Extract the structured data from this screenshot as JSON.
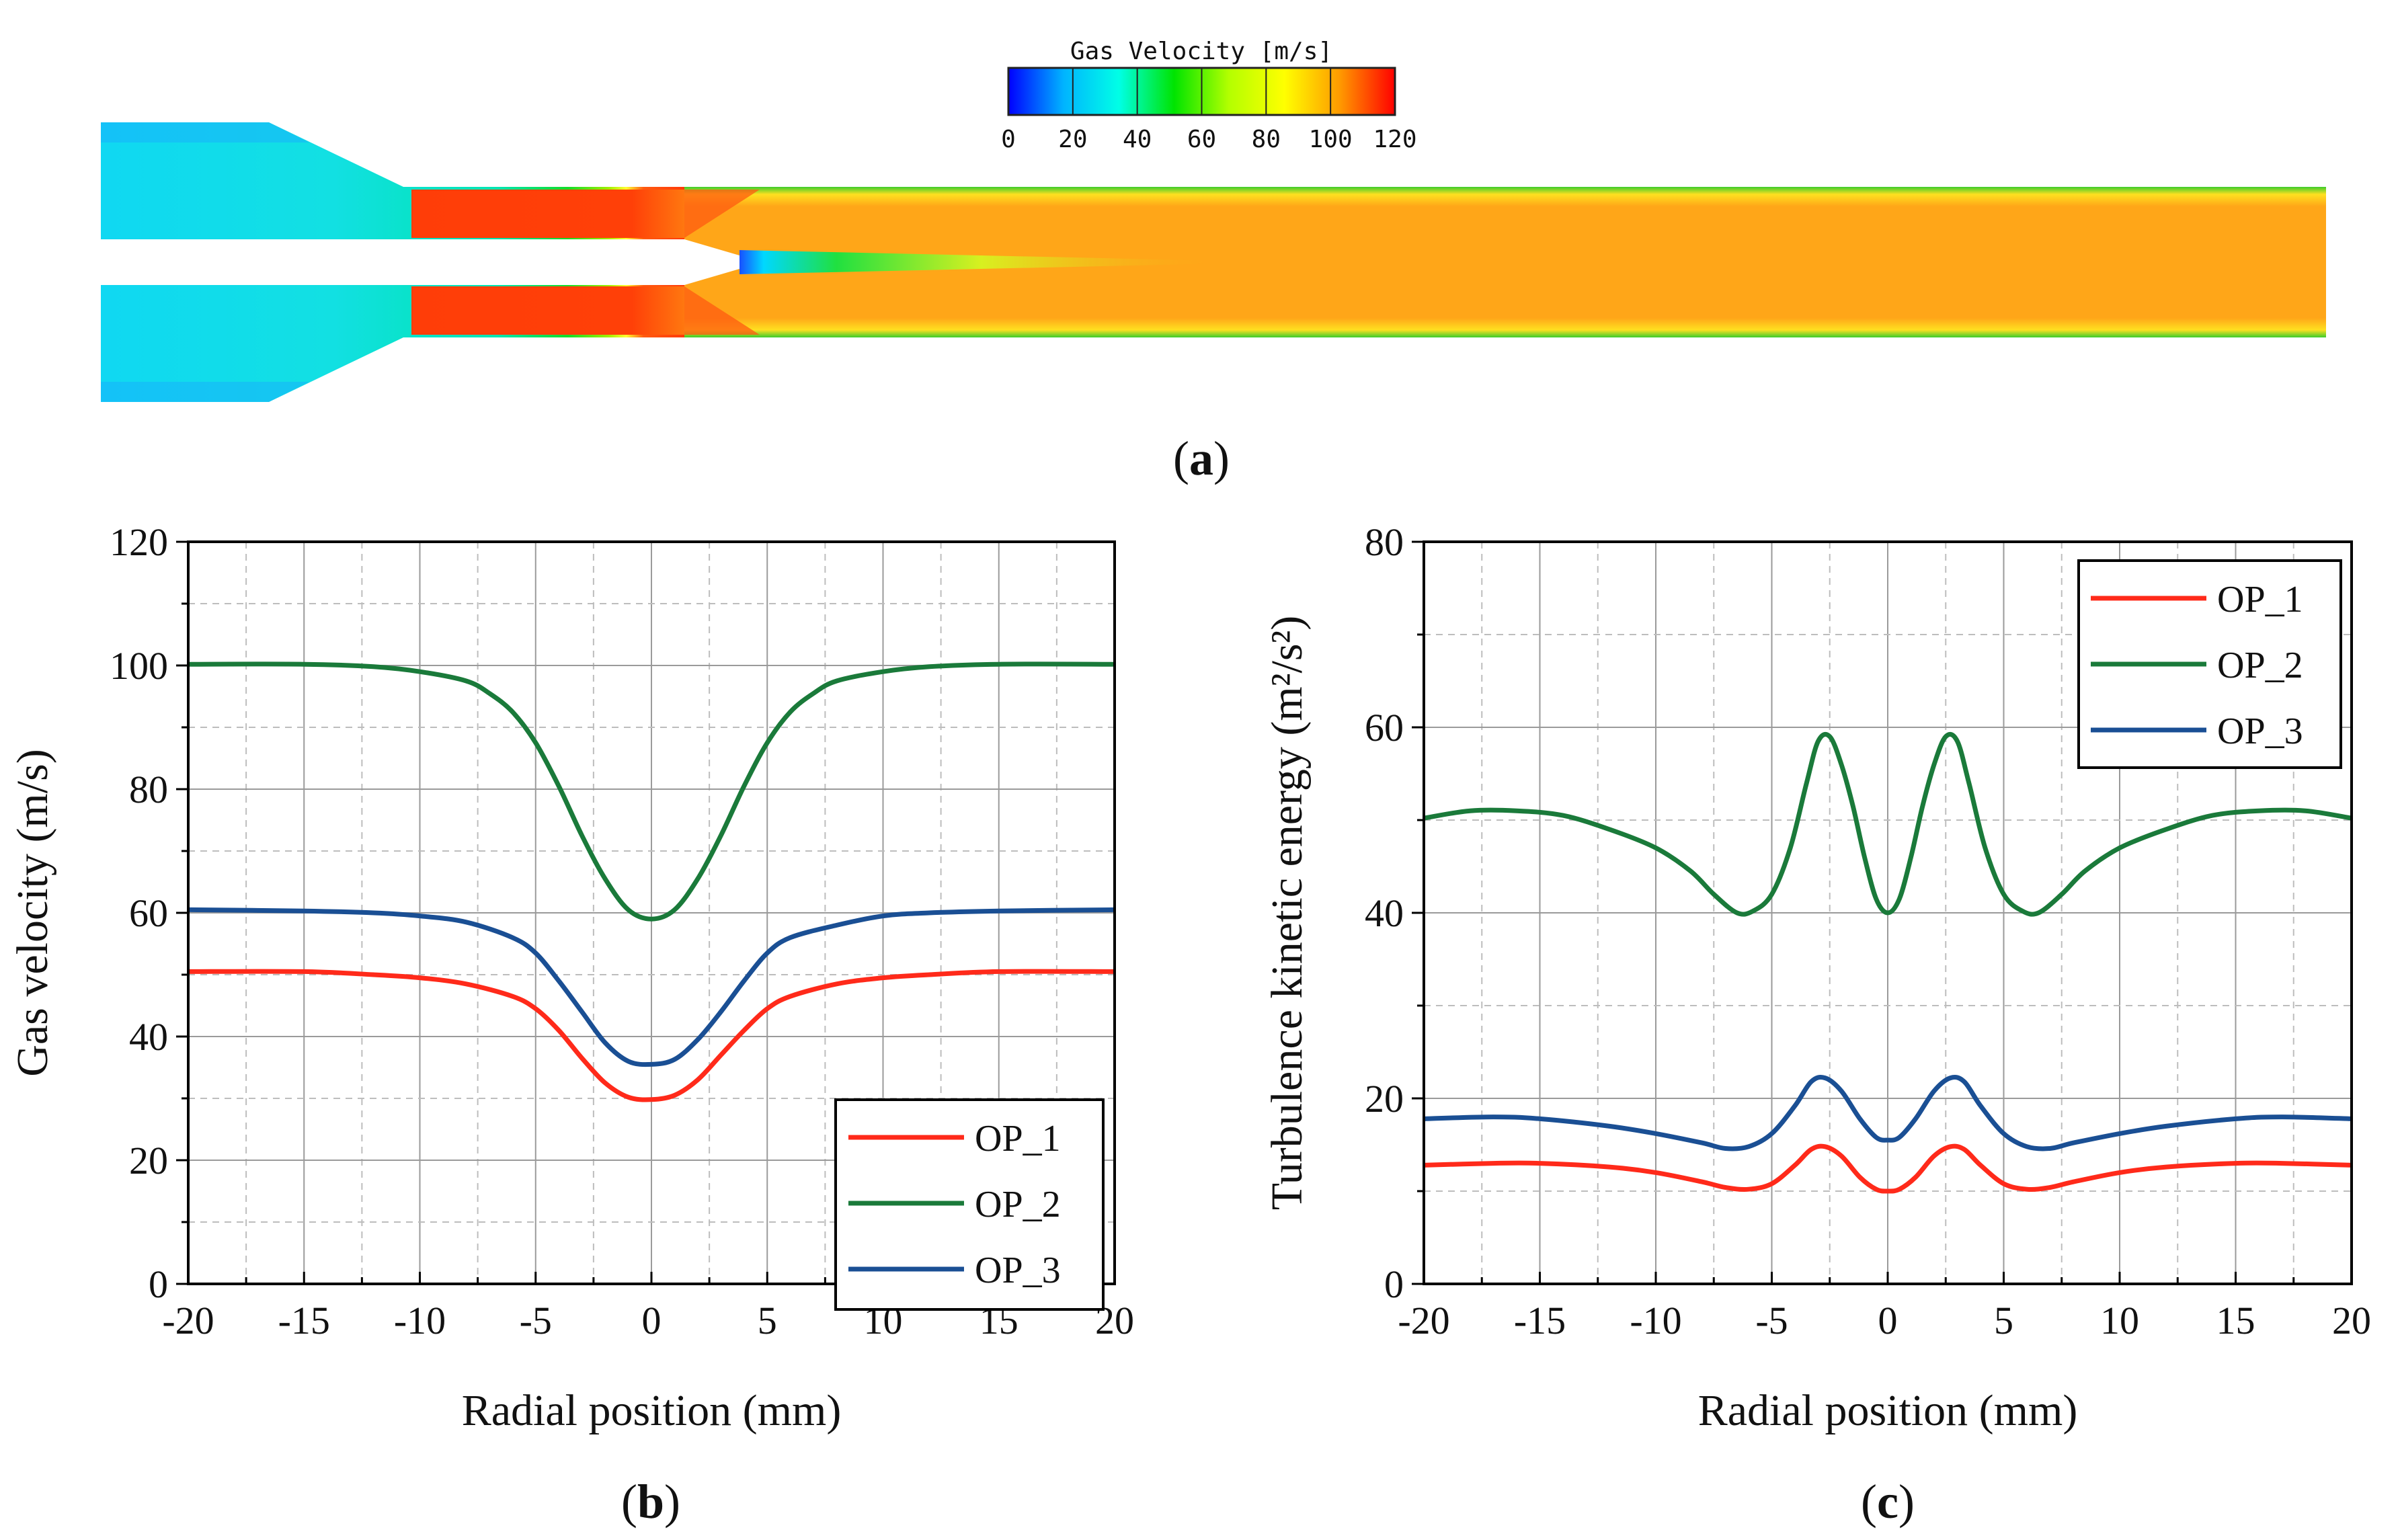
{
  "captions": {
    "a_open": "(",
    "a_letter": "a",
    "a_close": ")",
    "b_open": "(",
    "b_letter": "b",
    "b_close": ")",
    "c_open": "(",
    "c_letter": "c",
    "c_close": ")"
  },
  "contour": {
    "colorbar_title": "Gas Velocity [m/s]",
    "colorbar_ticks": [
      "0",
      "20",
      "40",
      "60",
      "80",
      "100",
      "120"
    ],
    "colorbar_range": [
      0,
      120
    ],
    "colorbar_colors": [
      "#0000ff",
      "#00b4ff",
      "#00ffe6",
      "#00e400",
      "#b4ff00",
      "#ffff00",
      "#ff9a00",
      "#ff0000"
    ]
  },
  "chart_data": [
    {
      "type": "line",
      "id": "b",
      "title": "",
      "xlabel": "Radial position (mm)",
      "ylabel": "Gas velocity (m/s)",
      "xlim": [
        -20,
        20
      ],
      "ylim": [
        0,
        120
      ],
      "xticks": [
        "-20",
        "-15",
        "-10",
        "-5",
        "0",
        "5",
        "10",
        "15",
        "20"
      ],
      "yticks": [
        "0",
        "20",
        "40",
        "60",
        "80",
        "100",
        "120"
      ],
      "grid": true,
      "legend_position": "bottom-right",
      "series": [
        {
          "name": "OP_1",
          "color": "#ff2a1a",
          "points": [
            [
              -20,
              50.5
            ],
            [
              -15,
              50.5
            ],
            [
              -12,
              50
            ],
            [
              -10,
              49.5
            ],
            [
              -8,
              48.5
            ],
            [
              -6,
              46.5
            ],
            [
              -5,
              44.5
            ],
            [
              -4,
              41
            ],
            [
              -3,
              36.5
            ],
            [
              -2,
              32.5
            ],
            [
              -1,
              30.2
            ],
            [
              0,
              29.8
            ],
            [
              1,
              30.5
            ],
            [
              2,
              33
            ],
            [
              3,
              37
            ],
            [
              4,
              41
            ],
            [
              5,
              44.5
            ],
            [
              6,
              46.5
            ],
            [
              8,
              48.5
            ],
            [
              10,
              49.5
            ],
            [
              12,
              50
            ],
            [
              15,
              50.5
            ],
            [
              20,
              50.5
            ]
          ]
        },
        {
          "name": "OP_2",
          "color": "#1a7a3a",
          "points": [
            [
              -20,
              100.2
            ],
            [
              -15,
              100.2
            ],
            [
              -12,
              99.8
            ],
            [
              -10,
              99
            ],
            [
              -8,
              97.5
            ],
            [
              -7,
              95.5
            ],
            [
              -6,
              92.5
            ],
            [
              -5,
              87.5
            ],
            [
              -4,
              80.5
            ],
            [
              -3,
              72.5
            ],
            [
              -2,
              65.5
            ],
            [
              -1,
              60.5
            ],
            [
              0,
              59
            ],
            [
              1,
              60.5
            ],
            [
              2,
              65.5
            ],
            [
              3,
              72.5
            ],
            [
              4,
              80.5
            ],
            [
              5,
              87.5
            ],
            [
              6,
              92.5
            ],
            [
              7,
              95.5
            ],
            [
              8,
              97.5
            ],
            [
              10,
              99
            ],
            [
              12,
              99.8
            ],
            [
              15,
              100.2
            ],
            [
              20,
              100.2
            ]
          ]
        },
        {
          "name": "OP_3",
          "color": "#1a4f94",
          "points": [
            [
              -20,
              60.5
            ],
            [
              -15,
              60.3
            ],
            [
              -12,
              60
            ],
            [
              -10,
              59.5
            ],
            [
              -8,
              58.5
            ],
            [
              -6,
              56
            ],
            [
              -5,
              53.5
            ],
            [
              -4,
              49
            ],
            [
              -3,
              44
            ],
            [
              -2,
              39
            ],
            [
              -1,
              36
            ],
            [
              0,
              35.5
            ],
            [
              1,
              36.3
            ],
            [
              2,
              39.5
            ],
            [
              3,
              44
            ],
            [
              4,
              49
            ],
            [
              5,
              53.5
            ],
            [
              6,
              56
            ],
            [
              8,
              58
            ],
            [
              10,
              59.5
            ],
            [
              12,
              60
            ],
            [
              15,
              60.3
            ],
            [
              20,
              60.5
            ]
          ]
        }
      ]
    },
    {
      "type": "line",
      "id": "c",
      "title": "",
      "xlabel": "Radial position (mm)",
      "ylabel": "Turbulence kinetic energy (m²/s²)",
      "xlim": [
        -20,
        20
      ],
      "ylim": [
        0,
        80
      ],
      "xticks": [
        "-20",
        "-15",
        "-10",
        "-5",
        "0",
        "5",
        "10",
        "15",
        "20"
      ],
      "yticks": [
        "0",
        "20",
        "40",
        "60",
        "80"
      ],
      "grid": true,
      "legend_position": "top-right",
      "series": [
        {
          "name": "OP_1",
          "color": "#ff2a1a",
          "points": [
            [
              -20,
              12.8
            ],
            [
              -17,
              13
            ],
            [
              -15,
              13
            ],
            [
              -12,
              12.6
            ],
            [
              -10,
              12
            ],
            [
              -8,
              11
            ],
            [
              -7,
              10.4
            ],
            [
              -6,
              10.2
            ],
            [
              -5,
              10.8
            ],
            [
              -4,
              12.8
            ],
            [
              -3.3,
              14.5
            ],
            [
              -2.7,
              14.8
            ],
            [
              -2,
              13.8
            ],
            [
              -1.2,
              11.5
            ],
            [
              -0.5,
              10.2
            ],
            [
              0,
              10
            ],
            [
              0.5,
              10.2
            ],
            [
              1.2,
              11.5
            ],
            [
              2,
              13.8
            ],
            [
              2.7,
              14.8
            ],
            [
              3.3,
              14.5
            ],
            [
              4,
              12.8
            ],
            [
              5,
              10.8
            ],
            [
              6,
              10.2
            ],
            [
              7,
              10.4
            ],
            [
              8,
              11
            ],
            [
              10,
              12
            ],
            [
              12,
              12.6
            ],
            [
              15,
              13
            ],
            [
              17,
              13
            ],
            [
              20,
              12.8
            ]
          ]
        },
        {
          "name": "OP_2",
          "color": "#1a7a3a",
          "points": [
            [
              -20,
              50.2
            ],
            [
              -18,
              51
            ],
            [
              -16,
              51
            ],
            [
              -14,
              50.5
            ],
            [
              -12,
              49
            ],
            [
              -10,
              47
            ],
            [
              -8.5,
              44.5
            ],
            [
              -7.5,
              42
            ],
            [
              -6.5,
              40
            ],
            [
              -5.8,
              40.2
            ],
            [
              -5,
              42
            ],
            [
              -4.2,
              47
            ],
            [
              -3.5,
              54
            ],
            [
              -3,
              58.5
            ],
            [
              -2.5,
              59
            ],
            [
              -2,
              56
            ],
            [
              -1.5,
              51.5
            ],
            [
              -1,
              46
            ],
            [
              -0.5,
              41.5
            ],
            [
              0,
              40
            ],
            [
              0.5,
              41.5
            ],
            [
              1,
              46
            ],
            [
              1.5,
              51.5
            ],
            [
              2,
              56
            ],
            [
              2.5,
              59
            ],
            [
              3,
              58.5
            ],
            [
              3.5,
              54
            ],
            [
              4.2,
              47
            ],
            [
              5,
              42
            ],
            [
              5.8,
              40.2
            ],
            [
              6.5,
              40
            ],
            [
              7.5,
              42
            ],
            [
              8.5,
              44.5
            ],
            [
              10,
              47
            ],
            [
              12,
              49
            ],
            [
              14,
              50.5
            ],
            [
              16,
              51
            ],
            [
              18,
              51
            ],
            [
              20,
              50.2
            ]
          ]
        },
        {
          "name": "OP_3",
          "color": "#1a4f94",
          "points": [
            [
              -20,
              17.8
            ],
            [
              -17,
              18
            ],
            [
              -15,
              17.8
            ],
            [
              -12,
              17
            ],
            [
              -10,
              16.2
            ],
            [
              -8,
              15.2
            ],
            [
              -7,
              14.6
            ],
            [
              -6,
              14.8
            ],
            [
              -5,
              16.2
            ],
            [
              -4,
              19.2
            ],
            [
              -3.3,
              21.8
            ],
            [
              -2.7,
              22.2
            ],
            [
              -2,
              20.8
            ],
            [
              -1.2,
              17.8
            ],
            [
              -0.5,
              15.8
            ],
            [
              0,
              15.5
            ],
            [
              0.5,
              15.8
            ],
            [
              1.2,
              17.8
            ],
            [
              2,
              20.8
            ],
            [
              2.7,
              22.2
            ],
            [
              3.3,
              21.8
            ],
            [
              4,
              19.2
            ],
            [
              5,
              16.2
            ],
            [
              6,
              14.8
            ],
            [
              7,
              14.6
            ],
            [
              8,
              15.2
            ],
            [
              10,
              16.2
            ],
            [
              12,
              17
            ],
            [
              15,
              17.8
            ],
            [
              17,
              18
            ],
            [
              20,
              17.8
            ]
          ]
        }
      ]
    }
  ]
}
